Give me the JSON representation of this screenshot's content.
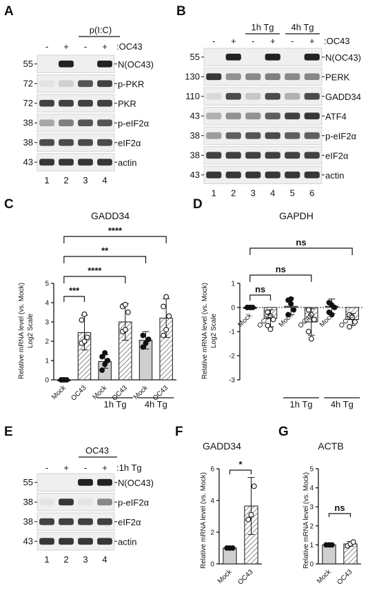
{
  "panels": {
    "A": {
      "letter": "A",
      "treatment": "p(I:C)",
      "signs": [
        "-",
        "+",
        "-",
        "+"
      ],
      "signs_suffix": ":OC43",
      "mw": [
        "55",
        "72",
        "72",
        "38",
        "38",
        "43"
      ],
      "proteins": [
        "N(OC43)",
        "p-PKR",
        "PKR",
        "p-eIF2α",
        "eIF2α",
        "actin"
      ],
      "lanes": [
        "1",
        "2",
        "3",
        "4"
      ],
      "bands": [
        [
          0.0,
          1.0,
          0.0,
          1.0
        ],
        [
          0.05,
          0.15,
          0.75,
          0.85
        ],
        [
          0.85,
          0.85,
          0.85,
          0.85
        ],
        [
          0.35,
          0.55,
          0.75,
          0.75
        ],
        [
          0.8,
          0.8,
          0.8,
          0.8
        ],
        [
          0.9,
          0.9,
          0.9,
          0.9
        ]
      ]
    },
    "B": {
      "letter": "B",
      "groups": [
        "1h Tg",
        "4h Tg"
      ],
      "signs": [
        "-",
        "+",
        "-",
        "+",
        "-",
        "+"
      ],
      "signs_suffix": ":OC43",
      "mw": [
        "55",
        "130",
        "110",
        "43",
        "38",
        "38",
        "43"
      ],
      "proteins": [
        "N(OC43)",
        "PERK",
        "GADD34",
        "ATF4",
        "p-eIF2α",
        "eIF2α",
        "actin"
      ],
      "lanes": [
        "1",
        "2",
        "3",
        "4",
        "5",
        "6"
      ],
      "bands": [
        [
          0.0,
          1.0,
          0.0,
          1.0,
          0.0,
          1.0
        ],
        [
          0.9,
          0.45,
          0.5,
          0.55,
          0.5,
          0.5
        ],
        [
          0.1,
          0.8,
          0.2,
          0.8,
          0.3,
          0.8
        ],
        [
          0.3,
          0.45,
          0.45,
          0.7,
          0.85,
          0.9
        ],
        [
          0.4,
          0.7,
          0.75,
          0.8,
          0.7,
          0.7
        ],
        [
          0.85,
          0.85,
          0.85,
          0.85,
          0.85,
          0.85
        ],
        [
          0.9,
          0.9,
          0.9,
          0.9,
          0.9,
          0.9
        ]
      ]
    },
    "E": {
      "letter": "E",
      "group": "OC43",
      "signs": [
        "-",
        "+",
        "-",
        "+"
      ],
      "signs_suffix": ":1h Tg",
      "mw": [
        "55",
        "38",
        "38",
        "43"
      ],
      "proteins": [
        "N(OC43)",
        "p-eIF2α",
        "eIF2α",
        "actin"
      ],
      "lanes": [
        "1",
        "2",
        "3",
        "4"
      ],
      "bands": [
        [
          0.0,
          0.0,
          1.0,
          1.0
        ],
        [
          0.05,
          0.9,
          0.05,
          0.5
        ],
        [
          0.85,
          0.85,
          0.85,
          0.85
        ],
        [
          0.9,
          0.9,
          0.9,
          0.9
        ]
      ]
    },
    "C": {
      "letter": "C",
      "significance": [
        "****",
        "**",
        "****",
        "***"
      ]
    },
    "D": {
      "letter": "D",
      "significance": [
        "ns",
        "ns",
        "ns"
      ]
    },
    "F": {
      "letter": "F",
      "significance": [
        "*"
      ]
    },
    "G": {
      "letter": "G",
      "significance": [
        "ns"
      ]
    }
  },
  "chart_data": [
    {
      "panel": "C",
      "type": "bar",
      "title": "GADD34",
      "ylabel": "Relative mRNA level (vs. Mock)",
      "ylabel_sub": "Log2 Scale",
      "ylim": [
        0,
        5
      ],
      "yticks": [
        0,
        1,
        2,
        3,
        4,
        5
      ],
      "categories": [
        "Mock",
        "OC43",
        "Mock",
        "OC43",
        "Mock",
        "OC43"
      ],
      "groups": [
        {
          "label": "1h Tg",
          "from": 2,
          "to": 3
        },
        {
          "label": "4h Tg",
          "from": 4,
          "to": 5
        }
      ],
      "values": [
        0.0,
        2.45,
        0.95,
        3.0,
        2.05,
        3.2
      ],
      "errors": [
        0.05,
        0.9,
        0.35,
        0.95,
        0.45,
        1.0
      ],
      "points": [
        [
          0,
          0,
          0,
          0,
          0
        ],
        [
          1.9,
          2.0,
          2.2,
          3.1,
          3.4
        ],
        [
          0.5,
          0.8,
          1.0,
          1.2,
          1.4
        ],
        [
          2.5,
          2.6,
          3.5,
          3.8,
          3.9
        ],
        [
          1.7,
          1.9,
          2.1,
          2.3
        ],
        [
          2.3,
          2.6,
          3.3,
          3.8,
          4.3
        ]
      ],
      "comparisons": [
        [
          0,
          5,
          "****"
        ],
        [
          0,
          4,
          "**"
        ],
        [
          0,
          3,
          "****"
        ],
        [
          0,
          1,
          "***"
        ]
      ]
    },
    {
      "panel": "D",
      "type": "bar",
      "title": "GAPDH",
      "ylabel": "Relative mRNA level (vs. Mock)",
      "ylabel_sub": "Log2 Scale",
      "ylim": [
        -3,
        1
      ],
      "yticks": [
        -3,
        -2,
        -1,
        0,
        1
      ],
      "categories": [
        "Mock",
        "OC43",
        "Mock",
        "OC43",
        "Mock",
        "OC43"
      ],
      "groups": [
        {
          "label": "1h Tg",
          "from": 2,
          "to": 3
        },
        {
          "label": "4h Tg",
          "from": 4,
          "to": 5
        }
      ],
      "values": [
        0.0,
        -0.45,
        0.05,
        -0.6,
        0.05,
        -0.5
      ],
      "errors": [
        0.03,
        0.35,
        0.35,
        0.55,
        0.3,
        0.25
      ],
      "points": [
        [
          0,
          0,
          0,
          0,
          0
        ],
        [
          -0.2,
          -0.35,
          -0.5,
          -0.75,
          -0.9
        ],
        [
          0.3,
          0.15,
          -0.1,
          -0.3,
          0.35
        ],
        [
          -0.1,
          -0.3,
          -0.5,
          -1.0,
          -1.3
        ],
        [
          0.2,
          0.1,
          0.0,
          -0.2,
          -0.3
        ],
        [
          -0.3,
          -0.4,
          -0.6,
          -0.8
        ]
      ],
      "comparisons": [
        [
          0,
          5,
          "ns"
        ],
        [
          0,
          3,
          "ns"
        ],
        [
          0,
          1,
          "ns"
        ]
      ]
    },
    {
      "panel": "F",
      "type": "bar",
      "title": "GADD34",
      "ylabel": "Relative mRNA level (vs. Mock)",
      "ylim": [
        0,
        6
      ],
      "yticks": [
        0,
        2,
        4,
        6
      ],
      "categories": [
        "Mock",
        "OC43"
      ],
      "values": [
        1.0,
        3.65
      ],
      "errors": [
        0.03,
        1.8
      ],
      "points": [
        [
          1,
          1,
          1
        ],
        [
          2.8,
          3.1,
          4.9
        ]
      ],
      "comparisons": [
        [
          0,
          1,
          "*"
        ]
      ]
    },
    {
      "panel": "G",
      "type": "bar",
      "title": "ACTB",
      "ylabel": "Relative mRNA level (vs. Mock)",
      "ylim": [
        0,
        5
      ],
      "yticks": [
        0,
        1,
        2,
        3,
        4,
        5
      ],
      "categories": [
        "Mock",
        "OC43"
      ],
      "values": [
        1.0,
        1.05
      ],
      "errors": [
        0.02,
        0.12
      ],
      "points": [
        [
          1,
          1,
          1
        ],
        [
          0.95,
          1.05,
          1.15
        ]
      ],
      "comparisons": [
        [
          0,
          1,
          "ns"
        ]
      ]
    }
  ]
}
